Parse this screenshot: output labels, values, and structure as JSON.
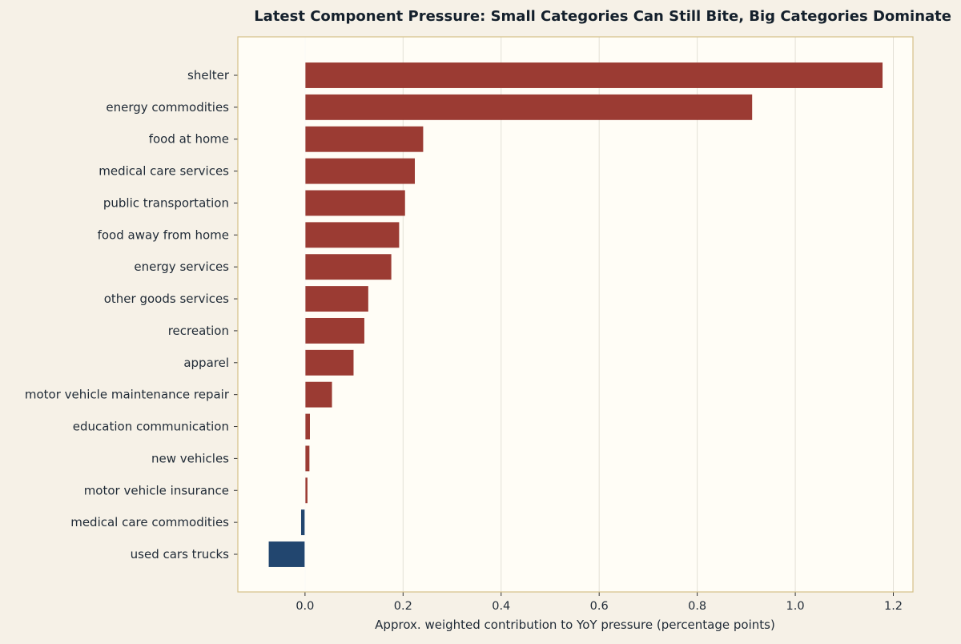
{
  "chart_data": {
    "type": "bar",
    "orientation": "horizontal",
    "title": "Latest Component Pressure: Small Categories Can Still Bite, Big Categories Dominate",
    "xlabel": "Approx. weighted contribution to YoY pressure (percentage points)",
    "ylabel": "",
    "xlim": [
      -0.137,
      1.24
    ],
    "xticks": [
      0.0,
      0.2,
      0.4,
      0.6,
      0.8,
      1.0,
      1.2
    ],
    "xtick_labels": [
      "0.0",
      "0.2",
      "0.4",
      "0.6",
      "0.8",
      "1.0",
      "1.2"
    ],
    "grid": "vertical",
    "legend": "none",
    "categories": [
      "shelter",
      "energy commodities",
      "food at home",
      "medical care services",
      "public transportation",
      "food away from home",
      "energy services",
      "other goods services",
      "recreation",
      "apparel",
      "motor vehicle maintenance repair",
      "education communication",
      "new vehicles",
      "motor vehicle insurance",
      "medical care commodities",
      "used cars trucks"
    ],
    "values": [
      1.178,
      0.912,
      0.241,
      0.224,
      0.204,
      0.192,
      0.176,
      0.129,
      0.121,
      0.099,
      0.055,
      0.01,
      0.009,
      0.005,
      -0.008,
      -0.074
    ],
    "colors": {
      "positive": "#9b3b33",
      "negative": "#22466f",
      "plot_bg": "#fffdf6",
      "page_bg": "#f6f1e7",
      "frame": "#d4c089",
      "grid": "#e3e0d5",
      "zero_line": "#ffffff"
    }
  }
}
